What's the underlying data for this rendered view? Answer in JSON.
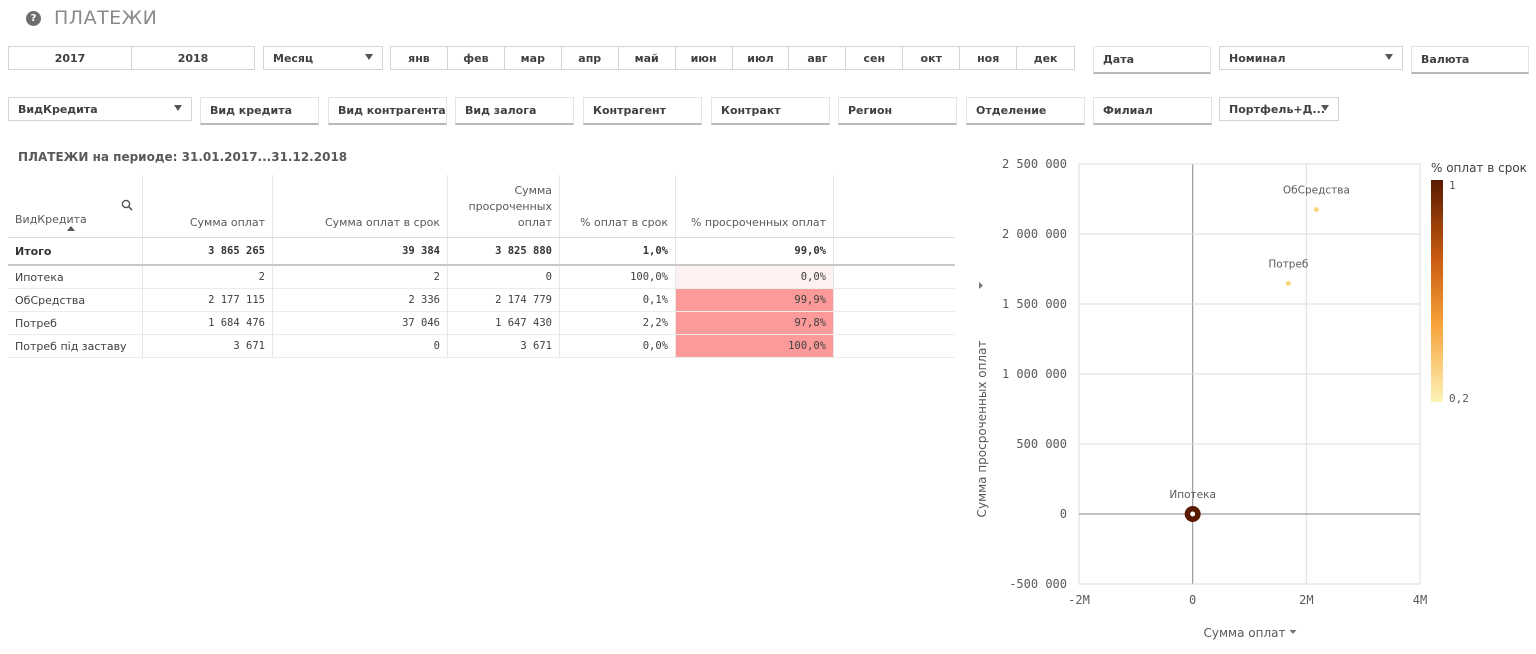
{
  "header": {
    "title": "ПЛАТЕЖИ",
    "help_icon": "question-circle-icon"
  },
  "years": [
    "2017",
    "2018"
  ],
  "period_select": {
    "value": "Месяц"
  },
  "months": [
    "янв",
    "фев",
    "мар",
    "апр",
    "май",
    "июн",
    "июл",
    "авг",
    "сен",
    "окт",
    "ноя",
    "дек"
  ],
  "top_filters": {
    "date": "Дата",
    "nominal": "Номинал",
    "currency": "Валюта"
  },
  "second_filters": {
    "vid_kredita_select": "ВидКредита",
    "items": [
      "Вид кредита",
      "Вид контрагента",
      "Вид залога",
      "Контрагент",
      "Контракт",
      "Регион",
      "Отделение",
      "Филиал"
    ],
    "portfolio": "Портфель+Д..."
  },
  "table": {
    "title": "ПЛАТЕЖИ на периоде: 31.01.2017...31.12.2018",
    "headers": [
      "ВидКредита",
      "Сумма оплат",
      "Сумма оплат в срок",
      "Сумма просроченных оплат",
      "% оплат в срок",
      "% просроченных оплат"
    ],
    "total": [
      "Итого",
      "3 865 265",
      "39 384",
      "3 825 880",
      "1,0%",
      "99,0%"
    ],
    "rows": [
      [
        "Ипотека",
        "2",
        "2",
        "0",
        "100,0%",
        "0,0%"
      ],
      [
        "ОбСредства",
        "2 177 115",
        "2 336",
        "2 174 779",
        "0,1%",
        "99,9%"
      ],
      [
        "Потреб",
        "1 684 476",
        "37 046",
        "1 647 430",
        "2,2%",
        "97,8%"
      ],
      [
        "Потреб під заставу",
        "3 671",
        "0",
        "3 671",
        "0,0%",
        "100,0%"
      ]
    ]
  },
  "chart_data": {
    "type": "scatter",
    "xlabel": "Сумма оплат",
    "ylabel": "Сумма просроченных оплат",
    "xlim": [
      -2000000,
      4000000
    ],
    "ylim": [
      -500000,
      2500000
    ],
    "x_ticks": [
      "-2M",
      "0",
      "2M",
      "4M"
    ],
    "y_ticks": [
      "2 500 000",
      "2 000 000",
      "1 500 000",
      "1 000 000",
      "500 000",
      "0",
      "-500 000"
    ],
    "color_legend": {
      "title": "% оплат в срок",
      "max_label": "1",
      "min_label": "0,2",
      "color_high": "#5a1a00",
      "color_low": "#fdf3b8"
    },
    "points": [
      {
        "label": "ОбСредства",
        "x": 2177115,
        "y": 2174779,
        "color_value": 0.001
      },
      {
        "label": "Потреб",
        "x": 1684476,
        "y": 1647430,
        "color_value": 0.022
      },
      {
        "label": "Ипотека",
        "x": 2,
        "y": 0,
        "color_value": 1.0
      }
    ]
  }
}
